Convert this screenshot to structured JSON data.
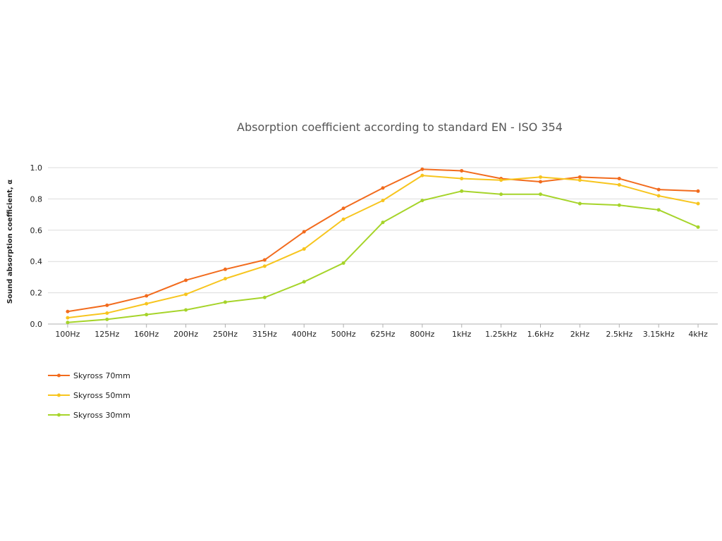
{
  "chart_data": {
    "type": "line",
    "title": "Absorption coefficient according to standard EN - ISO 354",
    "xlabel": "",
    "ylabel": "Sound absorption coefficient, α",
    "ylim": [
      0,
      1.0
    ],
    "y_ticks": [
      "0.0",
      "0.2",
      "0.4",
      "0.6",
      "0.8",
      "1.0"
    ],
    "grid": true,
    "legend_position": "bottom-left",
    "categories": [
      "100Hz",
      "125Hz",
      "160Hz",
      "200Hz",
      "250Hz",
      "315Hz",
      "400Hz",
      "500Hz",
      "625Hz",
      "800Hz",
      "1kHz",
      "1.25kHz",
      "1.6kHz",
      "2kHz",
      "2.5kHz",
      "3.15kHz",
      "4kHz"
    ],
    "series": [
      {
        "name": "Skyross 70mm",
        "color": "#f26b1d",
        "values": [
          0.08,
          0.12,
          0.18,
          0.28,
          0.35,
          0.41,
          0.59,
          0.74,
          0.87,
          0.99,
          0.98,
          0.93,
          0.91,
          0.94,
          0.93,
          0.86,
          0.85
        ]
      },
      {
        "name": "Skyross 50mm",
        "color": "#f7c51e",
        "values": [
          0.04,
          0.07,
          0.13,
          0.19,
          0.29,
          0.37,
          0.48,
          0.67,
          0.79,
          0.95,
          0.93,
          0.92,
          0.94,
          0.92,
          0.89,
          0.82,
          0.77
        ]
      },
      {
        "name": "Skyross 30mm",
        "color": "#a6d42a",
        "values": [
          0.01,
          0.03,
          0.06,
          0.09,
          0.14,
          0.17,
          0.27,
          0.39,
          0.65,
          0.79,
          0.85,
          0.83,
          0.83,
          0.77,
          0.76,
          0.73,
          0.62
        ]
      }
    ]
  }
}
